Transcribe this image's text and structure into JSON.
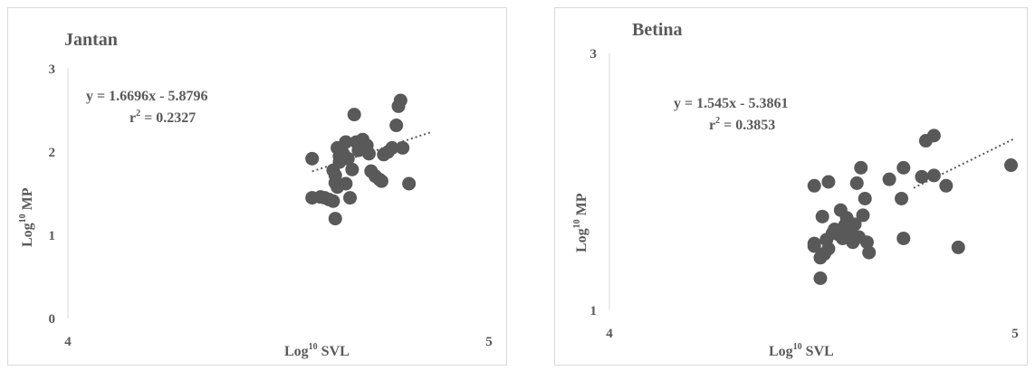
{
  "chart_data": [
    {
      "type": "scatter",
      "title": "Jantan",
      "xlabel": "Log",
      "xlabel_sup": "10",
      "xlabel_rest": " SVL",
      "ylabel": "Log",
      "ylabel_sup": "10",
      "ylabel_rest": " MP",
      "xlim": [
        4,
        5
      ],
      "ylim": [
        0,
        3
      ],
      "xticks": [
        "4",
        "5"
      ],
      "yticks": [
        "0",
        "1",
        "2",
        "3"
      ],
      "grid": false,
      "legend": "none",
      "equation": "y = 1.6696x - 5.8796",
      "r2_prefix": "r",
      "r2_sup": "2",
      "r2_value": " = 0.2327",
      "trendline": {
        "slope": 1.6696,
        "intercept": -5.8796,
        "x_range": [
          4.58,
          4.86
        ]
      },
      "color": "#595959",
      "points": [
        [
          4.58,
          1.92
        ],
        [
          4.58,
          1.45
        ],
        [
          4.6,
          1.46
        ],
        [
          4.61,
          1.45
        ],
        [
          4.62,
          1.43
        ],
        [
          4.63,
          1.41
        ],
        [
          4.635,
          1.2
        ],
        [
          4.63,
          1.78
        ],
        [
          4.635,
          1.72
        ],
        [
          4.635,
          1.63
        ],
        [
          4.64,
          1.58
        ],
        [
          4.64,
          2.05
        ],
        [
          4.645,
          1.95
        ],
        [
          4.65,
          2.02
        ],
        [
          4.655,
          1.97
        ],
        [
          4.66,
          2.12
        ],
        [
          4.665,
          1.92
        ],
        [
          4.67,
          1.45
        ],
        [
          4.675,
          1.79
        ],
        [
          4.68,
          2.45
        ],
        [
          4.685,
          2.12
        ],
        [
          4.69,
          2.02
        ],
        [
          4.7,
          2.15
        ],
        [
          4.71,
          2.08
        ],
        [
          4.715,
          1.98
        ],
        [
          4.72,
          1.77
        ],
        [
          4.73,
          1.71
        ],
        [
          4.74,
          1.67
        ],
        [
          4.745,
          1.65
        ],
        [
          4.75,
          1.97
        ],
        [
          4.76,
          2.0
        ],
        [
          4.77,
          2.05
        ],
        [
          4.78,
          2.32
        ],
        [
          4.785,
          2.55
        ],
        [
          4.79,
          2.62
        ],
        [
          4.795,
          2.05
        ],
        [
          4.81,
          1.62
        ],
        [
          4.645,
          1.88
        ],
        [
          4.66,
          1.62
        ]
      ]
    },
    {
      "type": "scatter",
      "title": "Betina",
      "xlabel": "Log",
      "xlabel_sup": "10",
      "xlabel_rest": " SVL",
      "ylabel": "Log",
      "ylabel_sup": "10",
      "ylabel_rest": " MP",
      "xlim": [
        4,
        5
      ],
      "ylim": [
        1,
        3
      ],
      "xticks": [
        "4",
        "5"
      ],
      "yticks": [
        "1",
        "3"
      ],
      "grid": false,
      "legend": "none",
      "equation": "y = 1.545x - 5.3861",
      "r2_prefix": "r",
      "r2_sup": "2",
      "r2_value": " = 0.3853",
      "trendline": {
        "slope": 1.545,
        "intercept": -5.3861,
        "x_range": [
          4.75,
          5.0
        ]
      },
      "color": "#595959",
      "points": [
        [
          4.505,
          1.97
        ],
        [
          4.505,
          1.52
        ],
        [
          4.505,
          1.5
        ],
        [
          4.52,
          1.41
        ],
        [
          4.52,
          1.25
        ],
        [
          4.525,
          1.73
        ],
        [
          4.53,
          1.44
        ],
        [
          4.535,
          1.55
        ],
        [
          4.54,
          2.0
        ],
        [
          4.54,
          1.48
        ],
        [
          4.55,
          1.6
        ],
        [
          4.555,
          1.63
        ],
        [
          4.565,
          1.59
        ],
        [
          4.57,
          1.78
        ],
        [
          4.575,
          1.56
        ],
        [
          4.58,
          1.66
        ],
        [
          4.585,
          1.72
        ],
        [
          4.59,
          1.58
        ],
        [
          4.595,
          1.61
        ],
        [
          4.6,
          1.53
        ],
        [
          4.605,
          1.67
        ],
        [
          4.61,
          1.99
        ],
        [
          4.615,
          1.57
        ],
        [
          4.62,
          2.11
        ],
        [
          4.625,
          1.74
        ],
        [
          4.63,
          1.87
        ],
        [
          4.635,
          1.53
        ],
        [
          4.64,
          1.45
        ],
        [
          4.69,
          2.02
        ],
        [
          4.72,
          1.87
        ],
        [
          4.725,
          2.11
        ],
        [
          4.725,
          1.56
        ],
        [
          4.77,
          2.04
        ],
        [
          4.78,
          2.32
        ],
        [
          4.8,
          2.36
        ],
        [
          4.8,
          2.05
        ],
        [
          4.83,
          1.97
        ],
        [
          4.86,
          1.49
        ],
        [
          4.99,
          2.13
        ]
      ]
    }
  ]
}
